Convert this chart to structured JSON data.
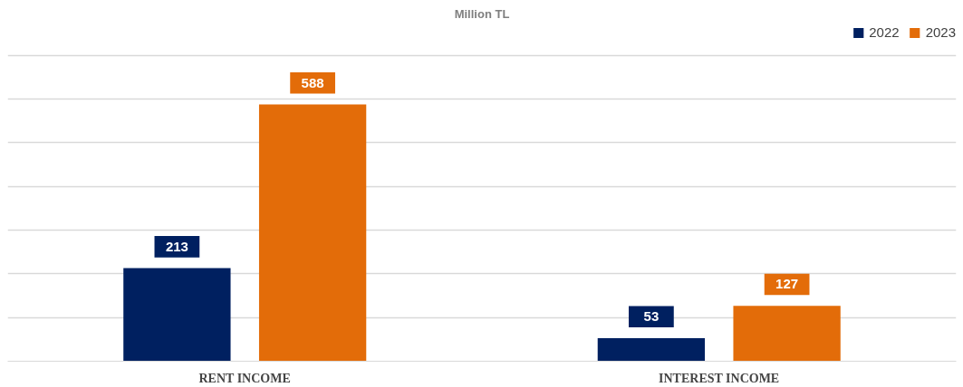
{
  "chart_data": {
    "type": "bar",
    "title": "Million TL",
    "categories": [
      "RENT INCOME",
      "INTEREST INCOME"
    ],
    "series": [
      {
        "name": "2022",
        "color": "#002060",
        "values": [
          213,
          53
        ]
      },
      {
        "name": "2023",
        "color": "#e36c09",
        "values": [
          588,
          127
        ]
      }
    ],
    "ylim": [
      0,
      700
    ],
    "yticks": [
      {
        "value": 0,
        "label": null
      },
      {
        "value": 100,
        "label": null
      },
      {
        "value": 200,
        "label": null
      },
      {
        "value": 300,
        "label": null
      },
      {
        "value": 400,
        "label": null
      },
      {
        "value": 500,
        "label": null
      },
      {
        "value": 600,
        "label": null
      },
      {
        "value": 700,
        "label": null
      }
    ],
    "tick_labels": "x",
    "grid": "y",
    "legend": "top right",
    "data_labels": true
  }
}
